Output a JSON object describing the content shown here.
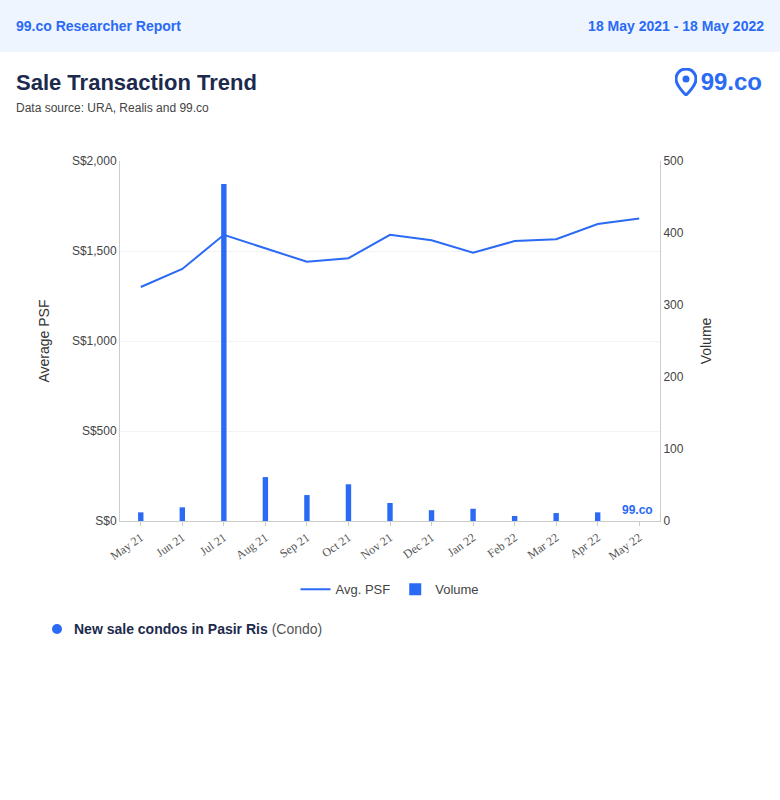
{
  "header": {
    "report": "99.co Researcher Report",
    "period": "18 May 2021 - 18 May 2022",
    "logo": "99.co"
  },
  "footer": {
    "label": "New sale condos in Pasir Ris",
    "note": "(Condo)"
  },
  "chart_data": {
    "type": "bar",
    "title": "Sale Transaction Trend",
    "subtitle": "Data source: URA, Realis and 99.co",
    "watermark": "99.co",
    "categories": [
      "May 21",
      "Jun 21",
      "Jul 21",
      "Aug 21",
      "Sep 21",
      "Oct 21",
      "Nov 21",
      "Dec 21",
      "Jan 22",
      "Feb 22",
      "Mar 22",
      "Apr 22",
      "May 22"
    ],
    "series": [
      {
        "name": "Avg. PSF",
        "type": "line",
        "color": "#2a6af5",
        "values": [
          1300,
          1400,
          1590,
          1515,
          1440,
          1460,
          1590,
          1560,
          1490,
          1555,
          1565,
          1650,
          1680
        ]
      },
      {
        "name": "Volume",
        "type": "bar",
        "axis": "y2",
        "color": "#2a6af5",
        "values": [
          12,
          19,
          468,
          61,
          36,
          51,
          25,
          15,
          17,
          7,
          11,
          12,
          0
        ]
      }
    ],
    "y_label": "Average PSF",
    "y2_label": "Volume",
    "ylim": [
      0,
      2000
    ],
    "yticks": [
      {
        "value": 0,
        "label": "S$0"
      },
      {
        "value": 500,
        "label": "S$500"
      },
      {
        "value": 1000,
        "label": "S$1,000"
      },
      {
        "value": 1500,
        "label": "S$1,500"
      },
      {
        "value": 2000,
        "label": "S$2,000"
      }
    ],
    "y2lim": [
      0,
      500
    ],
    "y2ticks": [
      0,
      100,
      200,
      300,
      400,
      500
    ],
    "grid": true,
    "legend": "bottom"
  }
}
